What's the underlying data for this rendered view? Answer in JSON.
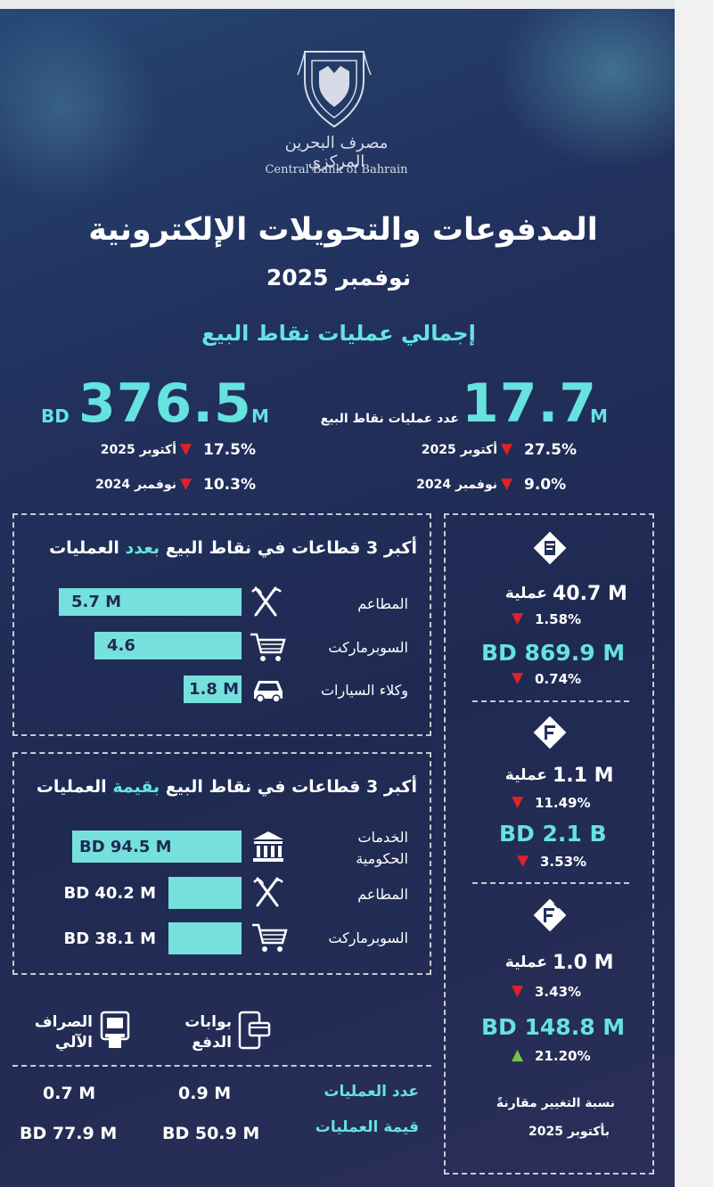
{
  "header": {
    "bank_name_ar": "مصرف البحرين المركزي",
    "bank_name_en": "Central Bank of Bahrain",
    "title": "المدفوعات والتحويلات الإلكترونية",
    "subtitle": "نوفمبر 2025"
  },
  "pos": {
    "heading": "إجمالي عمليات نقاط البيع",
    "count": {
      "value": "17.7",
      "unit": "M",
      "label": "عدد عمليات نقاط البيع",
      "vs1_label": "أكتوبر 2025",
      "vs1_pct": "27.5%",
      "vs1_dir": "down",
      "vs2_label": "نوفمبر 2024",
      "vs2_pct": "9.0%",
      "vs2_dir": "down"
    },
    "value": {
      "currency": "BD",
      "value": "376.5",
      "unit": "M",
      "vs1_label": "أكتوبر 2025",
      "vs1_pct": "17.5%",
      "vs1_dir": "down",
      "vs2_label": "نوفمبر 2024",
      "vs2_pct": "10.3%",
      "vs2_dir": "down"
    }
  },
  "top_by_count": {
    "title_pre": "أكبر 3 قطاعات في نقاط البيع",
    "title_hl": "بعدد",
    "title_post": "العمليات",
    "rows": [
      {
        "category": "المطاعم",
        "label": "5.7 M",
        "icon": "fork-knife-icon"
      },
      {
        "category": "السوبرماركت",
        "label": "4.6",
        "icon": "cart-icon"
      },
      {
        "category": "وكلاء السيارات",
        "label": "1.8 M",
        "icon": "car-icon"
      }
    ]
  },
  "top_by_value": {
    "title_pre": "أكبر 3 قطاعات في نقاط البيع",
    "title_hl": "بقيمة",
    "title_post": "العمليات",
    "rows": [
      {
        "category_line1": "الخدمات",
        "category_line2": "الحكومية",
        "label": "BD 94.5 M",
        "icon": "government-building-icon"
      },
      {
        "category_line1": "المطاعم",
        "category_line2": "",
        "label": "BD 40.2 M",
        "icon": "fork-knife-icon"
      },
      {
        "category_line1": "السوبرماركت",
        "category_line2": "",
        "label": "BD 38.1 M",
        "icon": "cart-icon"
      }
    ]
  },
  "channels": {
    "gateway_label_1": "بوابات",
    "gateway_label_2": "الدفع",
    "atm_label_1": "الصراف",
    "atm_label_2": "الآلي",
    "row1_label": "عدد العمليات",
    "row2_label": "قيمة العمليات",
    "gateway_count": "0.9 M",
    "atm_count": "0.7 M",
    "gateway_value": "BD 50.9 M",
    "atm_value": "BD 77.9 M"
  },
  "right_panel": {
    "op_word": "عملية",
    "items": [
      {
        "icon": "card-payment-icon",
        "count": "40.7 M",
        "count_pct": "1.58%",
        "count_dir": "down",
        "value": "BD 869.9 M",
        "value_pct": "0.74%",
        "value_dir": "down"
      },
      {
        "icon": "fawri-transfer-icon",
        "count": "1.1 M",
        "count_pct": "11.49%",
        "count_dir": "down",
        "value": "BD 2.1 B",
        "value_pct": "3.53%",
        "value_dir": "down"
      },
      {
        "icon": "fawateer-bill-icon",
        "count": "1.0 M",
        "count_pct": "3.43%",
        "count_dir": "down",
        "value": "BD 148.8 M",
        "value_pct": "21.20%",
        "value_dir": "up"
      }
    ],
    "note_line1": "نسبة التغيير مقارنةً",
    "note_line2": "بأكتوبر 2025"
  },
  "chart_data": [
    {
      "type": "bar",
      "title": "أكبر 3 قطاعات في نقاط البيع بعدد العمليات",
      "categories": [
        "المطاعم",
        "السوبرماركت",
        "وكلاء السيارات"
      ],
      "values": [
        5.7,
        4.6,
        1.8
      ]
    },
    {
      "type": "bar",
      "title": "أكبر 3 قطاعات في نقاط البيع بقيمة العمليات",
      "categories": [
        "الخدمات الحكومية",
        "المطاعم",
        "السوبرماركت"
      ],
      "values": [
        94.5,
        40.2,
        38.1
      ]
    }
  ],
  "colors": {
    "background": "#22305c",
    "teal": "#66e3df",
    "bar": "#76e0dd",
    "down": "#e0202a",
    "up": "#7bc24a"
  }
}
